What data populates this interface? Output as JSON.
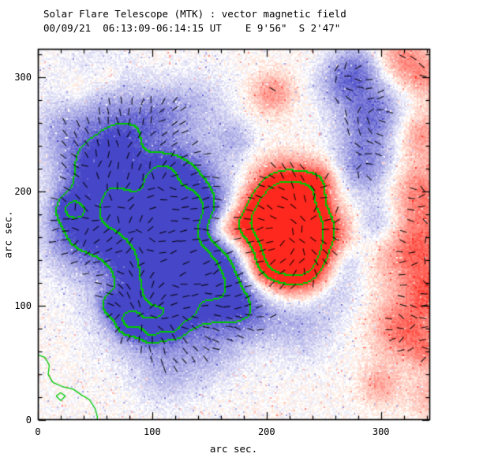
{
  "chart_data": {
    "type": "heatmap",
    "title": "Solar Flare Telescope (MTK) : vector magnetic field",
    "subtitle": "00/09/21  06:13:09-06:14:15 UT    E 9'56\"  S 2'47\"",
    "xlabel": "arc sec.",
    "ylabel": "arc sec.",
    "xlim": [
      0,
      343
    ],
    "ylim": [
      0,
      325
    ],
    "xticks": [
      0,
      100,
      200,
      300
    ],
    "yticks": [
      0,
      100,
      200,
      300
    ],
    "minor_tick_step": 20,
    "colors": {
      "positive_polarity_red": "#ff2814",
      "negative_polarity_blue": "#4646c8",
      "contour_green": "#00c800",
      "vector_ticks": "#000000",
      "axes": "#000000",
      "background": "#ffffff"
    },
    "contour_levels": [
      0.8,
      1.35
    ],
    "field_sources_format": "[x_arcsec, y_arcsec, gaussian_radius_arcsec, signed_strength]",
    "field_sources": [
      [
        95,
        165,
        38,
        -0.85
      ],
      [
        65,
        190,
        28,
        -0.7
      ],
      [
        48,
        225,
        22,
        -0.6
      ],
      [
        125,
        125,
        32,
        -0.8
      ],
      [
        95,
        95,
        26,
        -0.7
      ],
      [
        150,
        170,
        30,
        -0.75
      ],
      [
        120,
        215,
        22,
        -0.65
      ],
      [
        33,
        162,
        20,
        -0.5
      ],
      [
        75,
        250,
        18,
        -0.5
      ],
      [
        105,
        268,
        16,
        -0.45
      ],
      [
        160,
        118,
        22,
        -0.75
      ],
      [
        183,
        95,
        18,
        -0.5
      ],
      [
        150,
        60,
        20,
        -0.3
      ],
      [
        112,
        38,
        18,
        -0.28
      ],
      [
        28,
        185,
        9,
        -0.7
      ],
      [
        108,
        212,
        8,
        -0.7
      ],
      [
        135,
        185,
        12,
        -0.4
      ],
      [
        80,
        85,
        8,
        -0.75
      ],
      [
        100,
        78,
        7,
        -0.7
      ],
      [
        118,
        82,
        7,
        -0.7
      ],
      [
        130,
        95,
        7,
        -0.65
      ],
      [
        65,
        100,
        7,
        -0.65
      ],
      [
        290,
        268,
        20,
        -0.68
      ],
      [
        284,
        222,
        18,
        -0.58
      ],
      [
        298,
        172,
        16,
        -0.45
      ],
      [
        279,
        308,
        15,
        -0.5
      ],
      [
        256,
        192,
        13,
        -0.35
      ],
      [
        270,
        140,
        12,
        -0.3
      ],
      [
        228,
        88,
        22,
        -0.4
      ],
      [
        258,
        118,
        16,
        -0.35
      ],
      [
        172,
        246,
        12,
        -0.3
      ],
      [
        55,
        285,
        25,
        -0.3
      ],
      [
        20,
        255,
        18,
        -0.28
      ],
      [
        140,
        275,
        20,
        -0.3
      ],
      [
        262,
        295,
        14,
        -0.35
      ],
      [
        215,
        160,
        30,
        1.25
      ],
      [
        222,
        155,
        12,
        0.6
      ],
      [
        235,
        175,
        22,
        0.95
      ],
      [
        196,
        176,
        18,
        0.8
      ],
      [
        155,
        165,
        11,
        0.45
      ],
      [
        170,
        168,
        13,
        0.55
      ],
      [
        214,
        202,
        17,
        0.75
      ],
      [
        232,
        133,
        17,
        0.85
      ],
      [
        200,
        132,
        13,
        0.5
      ],
      [
        246,
        206,
        13,
        0.55
      ],
      [
        205,
        286,
        13,
        0.45
      ],
      [
        330,
        150,
        24,
        0.68
      ],
      [
        336,
        200,
        19,
        0.5
      ],
      [
        320,
        80,
        19,
        0.6
      ],
      [
        336,
        250,
        15,
        0.42
      ],
      [
        318,
        318,
        15,
        0.45
      ],
      [
        300,
        30,
        13,
        0.35
      ],
      [
        344,
        110,
        15,
        0.5
      ],
      [
        36,
        290,
        11,
        0.26
      ],
      [
        60,
        300,
        9,
        0.24
      ],
      [
        342,
        60,
        12,
        0.38
      ],
      [
        345,
        20,
        14,
        0.32
      ],
      [
        340,
        300,
        14,
        0.38
      ]
    ],
    "neutral_lines": [
      [
        [
          0,
          57
        ],
        [
          6,
          55
        ],
        [
          10,
          48
        ],
        [
          9,
          40
        ],
        [
          13,
          33
        ],
        [
          22,
          29
        ],
        [
          31,
          27
        ],
        [
          38,
          22
        ],
        [
          45,
          18
        ],
        [
          50,
          10
        ],
        [
          52,
          3
        ],
        [
          52,
          0
        ]
      ],
      [
        [
          16,
          21
        ],
        [
          20,
          24
        ],
        [
          24,
          21
        ],
        [
          20,
          17
        ],
        [
          16,
          21
        ]
      ]
    ],
    "vector_field": {
      "grid_spacing_arcsec": 9.5,
      "tick_length_arcsec": 6.2,
      "min_field": 0.4,
      "jitter_arcsec": 2,
      "skip_fraction": 0.12,
      "seed": 11
    }
  }
}
